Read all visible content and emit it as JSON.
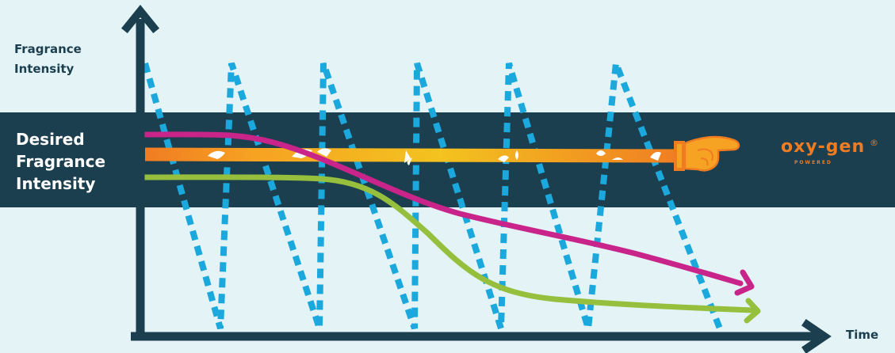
{
  "labels": {
    "y_axis": "Fragrance Intensity",
    "band": "Desired Fragrance Intensity",
    "x_axis": "Time"
  },
  "logo": {
    "word": "oxy-gen",
    "registered": "®",
    "tagline": "POWERED"
  },
  "colors": {
    "background": "#e3f3f6",
    "band": "#1c3f4f",
    "axes": "#1c3f4f",
    "dashed_line": "#1ba8dd",
    "magenta_line": "#c8248a",
    "green_line": "#95bf3c",
    "orange_line": "#f07c22",
    "yellow_line": "#f3c31f",
    "logo": "#f07c22"
  },
  "icons": [
    "pointing-hand-icon",
    "flower-pattern"
  ]
}
